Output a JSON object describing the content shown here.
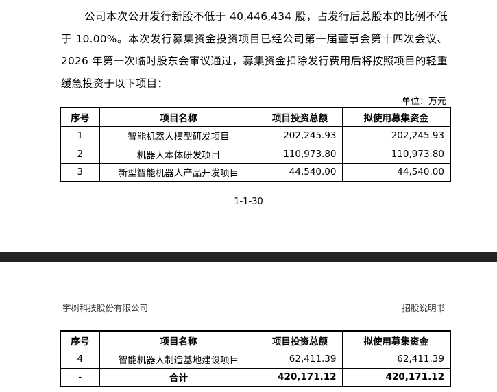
{
  "paragraph": "公司本次公开发行新股不低于 40,446,434 股，占发行后总股本的比例不低于 10.00%。本次发行募集资金投资项目已经公司第一届董事会第十四次会议、2026 年第一次临时股东会审议通过，募集资金扣除发行费用后将按照项目的轻重缓急投资于以下项目：",
  "unit": "单位：万元",
  "table": {
    "headers": [
      "序号",
      "项目名称",
      "项目投资总额",
      "拟使用募集资金"
    ],
    "rows_page1": [
      [
        "1",
        "智能机器人模型研发项目",
        "202,245.93",
        "202,245.93"
      ],
      [
        "2",
        "机器人本体研发项目",
        "110,973.80",
        "110,973.80"
      ],
      [
        "3",
        "新型智能机器人产品开发项目",
        "44,540.00",
        "44,540.00"
      ]
    ],
    "rows_page2": [
      [
        "4",
        "智能机器人制造基地建设项目",
        "62,411.39",
        "62,411.39"
      ]
    ],
    "total": [
      "-",
      "合计",
      "420,171.12",
      "420,171.12"
    ]
  },
  "page_number": "1-1-30",
  "page_header": {
    "company": "宇树科技股份有限公司",
    "doc": "招股说明书"
  }
}
